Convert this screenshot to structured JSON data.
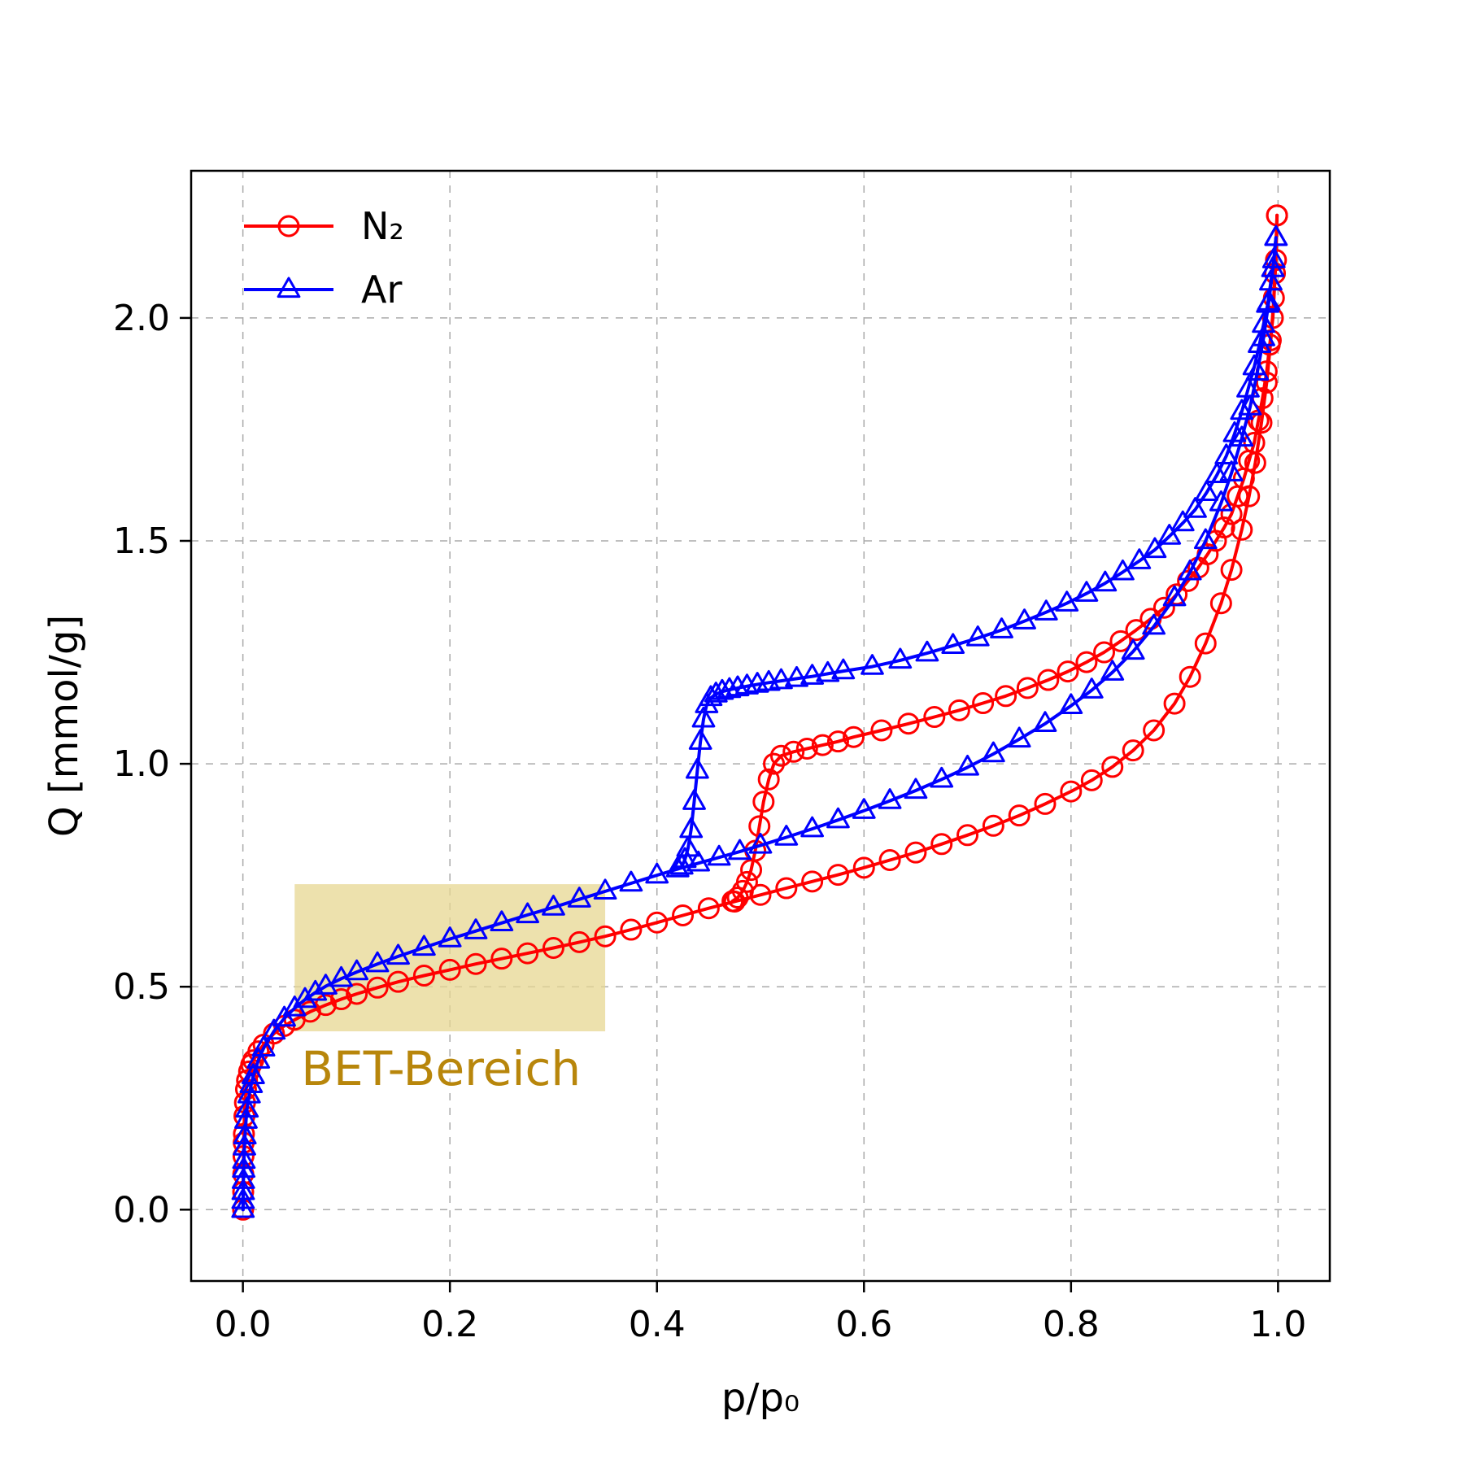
{
  "chart_data": {
    "type": "line",
    "title": "",
    "xlabel": "p/p₀",
    "ylabel": "Q [mmol/g]",
    "xlim": [
      -0.05,
      1.05
    ],
    "ylim": [
      -0.16,
      2.33
    ],
    "xticks": [
      0.0,
      0.2,
      0.4,
      0.6,
      0.8,
      1.0
    ],
    "xtick_labels": [
      "0.0",
      "0.2",
      "0.4",
      "0.6",
      "0.8",
      "1.0"
    ],
    "yticks": [
      0.0,
      0.5,
      1.0,
      1.5,
      2.0
    ],
    "ytick_labels": [
      "0.0",
      "0.5",
      "1.0",
      "1.5",
      "2.0"
    ],
    "grid": true,
    "grid_style": "dashed",
    "grid_color": "#aaaaaa",
    "legend_position": "upper-left",
    "annotation": {
      "label": "BET-Bereich",
      "text_color": "#b8860b",
      "region": {
        "x0": 0.05,
        "x1": 0.35,
        "y0": 0.4,
        "y1": 0.73,
        "fill": "#e7d792",
        "opacity": 0.75
      }
    },
    "series": [
      {
        "name": "N₂",
        "color": "#ff0000",
        "marker": "circle",
        "branches": {
          "adsorption": [
            [
              0.0002,
              0.0
            ],
            [
              0.0003,
              0.04
            ],
            [
              0.0004,
              0.08
            ],
            [
              0.0006,
              0.12
            ],
            [
              0.0008,
              0.15
            ],
            [
              0.001,
              0.17
            ],
            [
              0.0015,
              0.21
            ],
            [
              0.002,
              0.24
            ],
            [
              0.003,
              0.27
            ],
            [
              0.004,
              0.29
            ],
            [
              0.006,
              0.31
            ],
            [
              0.008,
              0.325
            ],
            [
              0.01,
              0.335
            ],
            [
              0.015,
              0.355
            ],
            [
              0.02,
              0.37
            ],
            [
              0.03,
              0.395
            ],
            [
              0.04,
              0.412
            ],
            [
              0.05,
              0.426
            ],
            [
              0.065,
              0.444
            ],
            [
              0.08,
              0.459
            ],
            [
              0.095,
              0.472
            ],
            [
              0.11,
              0.484
            ],
            [
              0.13,
              0.498
            ],
            [
              0.15,
              0.511
            ],
            [
              0.175,
              0.525
            ],
            [
              0.2,
              0.538
            ],
            [
              0.225,
              0.551
            ],
            [
              0.25,
              0.563
            ],
            [
              0.275,
              0.575
            ],
            [
              0.3,
              0.587
            ],
            [
              0.325,
              0.6
            ],
            [
              0.35,
              0.613
            ],
            [
              0.375,
              0.628
            ],
            [
              0.4,
              0.644
            ],
            [
              0.425,
              0.66
            ],
            [
              0.45,
              0.676
            ],
            [
              0.475,
              0.691
            ],
            [
              0.5,
              0.706
            ],
            [
              0.525,
              0.721
            ],
            [
              0.55,
              0.736
            ],
            [
              0.575,
              0.751
            ],
            [
              0.6,
              0.767
            ],
            [
              0.625,
              0.784
            ],
            [
              0.65,
              0.801
            ],
            [
              0.675,
              0.82
            ],
            [
              0.7,
              0.84
            ],
            [
              0.725,
              0.861
            ],
            [
              0.75,
              0.884
            ],
            [
              0.775,
              0.91
            ],
            [
              0.8,
              0.938
            ],
            [
              0.82,
              0.963
            ],
            [
              0.84,
              0.993
            ],
            [
              0.86,
              1.03
            ],
            [
              0.88,
              1.075
            ],
            [
              0.9,
              1.135
            ],
            [
              0.915,
              1.195
            ],
            [
              0.93,
              1.27
            ],
            [
              0.945,
              1.36
            ],
            [
              0.955,
              1.435
            ],
            [
              0.965,
              1.525
            ],
            [
              0.972,
              1.6
            ],
            [
              0.978,
              1.675
            ],
            [
              0.984,
              1.765
            ],
            [
              0.989,
              1.855
            ],
            [
              0.993,
              1.95
            ],
            [
              0.996,
              2.045
            ],
            [
              0.998,
              2.13
            ],
            [
              0.999,
              2.23
            ]
          ],
          "desorption": [
            [
              0.999,
              2.23
            ],
            [
              0.997,
              2.1
            ],
            [
              0.995,
              2.0
            ],
            [
              0.992,
              1.94
            ],
            [
              0.989,
              1.88
            ],
            [
              0.985,
              1.82
            ],
            [
              0.981,
              1.77
            ],
            [
              0.977,
              1.72
            ],
            [
              0.972,
              1.68
            ],
            [
              0.967,
              1.64
            ],
            [
              0.961,
              1.6
            ],
            [
              0.955,
              1.56
            ],
            [
              0.948,
              1.53
            ],
            [
              0.94,
              1.5
            ],
            [
              0.932,
              1.47
            ],
            [
              0.923,
              1.44
            ],
            [
              0.913,
              1.41
            ],
            [
              0.902,
              1.38
            ],
            [
              0.89,
              1.35
            ],
            [
              0.877,
              1.325
            ],
            [
              0.863,
              1.3
            ],
            [
              0.848,
              1.275
            ],
            [
              0.832,
              1.25
            ],
            [
              0.815,
              1.228
            ],
            [
              0.797,
              1.207
            ],
            [
              0.778,
              1.188
            ],
            [
              0.758,
              1.17
            ],
            [
              0.737,
              1.152
            ],
            [
              0.715,
              1.136
            ],
            [
              0.692,
              1.12
            ],
            [
              0.668,
              1.105
            ],
            [
              0.643,
              1.09
            ],
            [
              0.617,
              1.075
            ],
            [
              0.59,
              1.06
            ],
            [
              0.575,
              1.05
            ],
            [
              0.56,
              1.042
            ],
            [
              0.545,
              1.034
            ],
            [
              0.532,
              1.027
            ],
            [
              0.52,
              1.018
            ],
            [
              0.513,
              1.0
            ],
            [
              0.508,
              0.965
            ],
            [
              0.503,
              0.915
            ],
            [
              0.499,
              0.86
            ],
            [
              0.495,
              0.805
            ],
            [
              0.491,
              0.762
            ],
            [
              0.487,
              0.735
            ],
            [
              0.483,
              0.715
            ],
            [
              0.478,
              0.7
            ],
            [
              0.473,
              0.692
            ]
          ]
        }
      },
      {
        "name": "Ar",
        "color": "#0000ff",
        "marker": "triangle",
        "branches": {
          "adsorption": [
            [
              0.0001,
              0.0
            ],
            [
              0.0002,
              0.02
            ],
            [
              0.0003,
              0.04
            ],
            [
              0.0005,
              0.065
            ],
            [
              0.0008,
              0.09
            ],
            [
              0.001,
              0.11
            ],
            [
              0.0015,
              0.14
            ],
            [
              0.002,
              0.165
            ],
            [
              0.003,
              0.2
            ],
            [
              0.004,
              0.225
            ],
            [
              0.006,
              0.257
            ],
            [
              0.008,
              0.28
            ],
            [
              0.01,
              0.3
            ],
            [
              0.015,
              0.335
            ],
            [
              0.02,
              0.362
            ],
            [
              0.03,
              0.4
            ],
            [
              0.04,
              0.429
            ],
            [
              0.05,
              0.452
            ],
            [
              0.06,
              0.471
            ],
            [
              0.07,
              0.487
            ],
            [
              0.08,
              0.501
            ],
            [
              0.095,
              0.518
            ],
            [
              0.11,
              0.533
            ],
            [
              0.13,
              0.551
            ],
            [
              0.15,
              0.568
            ],
            [
              0.175,
              0.588
            ],
            [
              0.2,
              0.607
            ],
            [
              0.225,
              0.625
            ],
            [
              0.25,
              0.643
            ],
            [
              0.275,
              0.661
            ],
            [
              0.3,
              0.678
            ],
            [
              0.325,
              0.696
            ],
            [
              0.35,
              0.714
            ],
            [
              0.375,
              0.732
            ],
            [
              0.4,
              0.75
            ],
            [
              0.42,
              0.764
            ],
            [
              0.44,
              0.777
            ],
            [
              0.46,
              0.79
            ],
            [
              0.48,
              0.803
            ],
            [
              0.5,
              0.817
            ],
            [
              0.525,
              0.835
            ],
            [
              0.55,
              0.854
            ],
            [
              0.575,
              0.874
            ],
            [
              0.6,
              0.895
            ],
            [
              0.625,
              0.917
            ],
            [
              0.65,
              0.94
            ],
            [
              0.675,
              0.965
            ],
            [
              0.7,
              0.992
            ],
            [
              0.725,
              1.022
            ],
            [
              0.75,
              1.055
            ],
            [
              0.775,
              1.09
            ],
            [
              0.8,
              1.13
            ],
            [
              0.82,
              1.165
            ],
            [
              0.84,
              1.205
            ],
            [
              0.86,
              1.252
            ],
            [
              0.88,
              1.308
            ],
            [
              0.9,
              1.372
            ],
            [
              0.915,
              1.43
            ],
            [
              0.93,
              1.5
            ],
            [
              0.945,
              1.585
            ],
            [
              0.955,
              1.652
            ],
            [
              0.965,
              1.73
            ],
            [
              0.973,
              1.8
            ],
            [
              0.98,
              1.878
            ],
            [
              0.986,
              1.955
            ],
            [
              0.991,
              2.035
            ],
            [
              0.995,
              2.11
            ],
            [
              0.998,
              2.18
            ]
          ],
          "desorption": [
            [
              0.998,
              2.18
            ],
            [
              0.996,
              2.13
            ],
            [
              0.993,
              2.08
            ],
            [
              0.99,
              2.03
            ],
            [
              0.986,
              1.985
            ],
            [
              0.982,
              1.94
            ],
            [
              0.977,
              1.89
            ],
            [
              0.971,
              1.84
            ],
            [
              0.965,
              1.79
            ],
            [
              0.958,
              1.74
            ],
            [
              0.95,
              1.69
            ],
            [
              0.941,
              1.648
            ],
            [
              0.931,
              1.608
            ],
            [
              0.92,
              1.57
            ],
            [
              0.908,
              1.54
            ],
            [
              0.895,
              1.51
            ],
            [
              0.881,
              1.48
            ],
            [
              0.866,
              1.455
            ],
            [
              0.85,
              1.43
            ],
            [
              0.833,
              1.405
            ],
            [
              0.815,
              1.382
            ],
            [
              0.796,
              1.36
            ],
            [
              0.776,
              1.34
            ],
            [
              0.755,
              1.32
            ],
            [
              0.733,
              1.3
            ],
            [
              0.71,
              1.282
            ],
            [
              0.686,
              1.265
            ],
            [
              0.661,
              1.248
            ],
            [
              0.635,
              1.232
            ],
            [
              0.608,
              1.218
            ],
            [
              0.58,
              1.208
            ],
            [
              0.565,
              1.202
            ],
            [
              0.55,
              1.196
            ],
            [
              0.535,
              1.191
            ],
            [
              0.52,
              1.186
            ],
            [
              0.508,
              1.182
            ],
            [
              0.497,
              1.178
            ],
            [
              0.487,
              1.174
            ],
            [
              0.478,
              1.17
            ],
            [
              0.47,
              1.166
            ],
            [
              0.463,
              1.162
            ],
            [
              0.457,
              1.156
            ],
            [
              0.452,
              1.148
            ],
            [
              0.448,
              1.132
            ],
            [
              0.445,
              1.1
            ],
            [
              0.442,
              1.05
            ],
            [
              0.439,
              0.985
            ],
            [
              0.436,
              0.915
            ],
            [
              0.433,
              0.852
            ],
            [
              0.43,
              0.81
            ],
            [
              0.427,
              0.785
            ],
            [
              0.424,
              0.77
            ],
            [
              0.42,
              0.764
            ]
          ]
        }
      }
    ],
    "style": {
      "line_width": 4,
      "marker_size": 12,
      "marker_stroke": 3,
      "axis_color": "#000000",
      "tick_font_size": 44,
      "label_font_size": 48,
      "legend_font_size": 46,
      "annotation_font_size": 58
    }
  }
}
